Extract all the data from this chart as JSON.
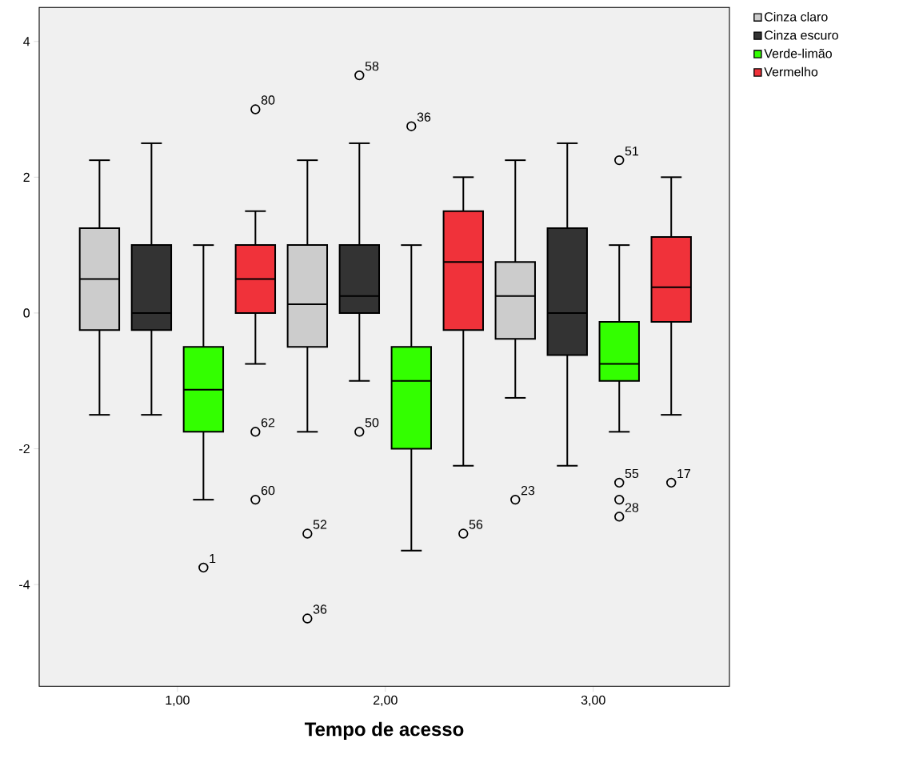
{
  "chart_data": {
    "type": "box",
    "xlabel": "Tempo de acesso",
    "categories": [
      "1,00",
      "2,00",
      "3,00"
    ],
    "ylim": [
      -5.5,
      4.5
    ],
    "yticks": [
      -4,
      -2,
      0,
      2,
      4
    ],
    "legend": "top right",
    "series": [
      {
        "name": "Cinza claro",
        "color": "#cccccc",
        "boxes": [
          {
            "low": -1.5,
            "q1": -0.25,
            "median": 0.5,
            "q3": 1.25,
            "high": 2.25
          },
          {
            "low": -1.75,
            "q1": -0.5,
            "median": 0.13,
            "q3": 1.0,
            "high": 2.25,
            "outliers": [
              -3.25,
              -4.5
            ]
          },
          {
            "low": -1.25,
            "q1": -0.38,
            "median": 0.25,
            "q3": 0.75,
            "high": 2.25,
            "outliers": [
              -2.75
            ]
          }
        ]
      },
      {
        "name": "Cinza escuro",
        "color": "#333333",
        "boxes": [
          {
            "low": -1.5,
            "q1": -0.25,
            "median": 0.0,
            "q3": 1.0,
            "high": 2.5
          },
          {
            "low": -1.0,
            "q1": 0.0,
            "median": 0.25,
            "q3": 1.0,
            "high": 2.5,
            "outliers": [
              3.5,
              -1.75
            ]
          },
          {
            "low": -2.25,
            "q1": -0.62,
            "median": 0.0,
            "q3": 1.25,
            "high": 2.5
          }
        ]
      },
      {
        "name": "Verde-limão",
        "color": "#33ff00",
        "boxes": [
          {
            "low": -2.75,
            "q1": -1.75,
            "median": -1.13,
            "q3": -0.5,
            "high": 1.0,
            "outliers": [
              -3.75
            ]
          },
          {
            "low": -3.5,
            "q1": -2.0,
            "median": -1.0,
            "q3": -0.5,
            "high": 1.0,
            "outliers": [
              2.75
            ]
          },
          {
            "low": -1.75,
            "q1": -1.0,
            "median": -0.75,
            "q3": -0.13,
            "high": 1.0,
            "outliers": [
              2.25,
              -2.5,
              -2.75,
              -3.0
            ]
          }
        ]
      },
      {
        "name": "Vermelho",
        "color": "#f0323a",
        "boxes": [
          {
            "low": -0.75,
            "q1": 0.0,
            "median": 0.5,
            "q3": 1.0,
            "high": 1.5,
            "outliers": [
              3.0,
              -1.75,
              -2.75
            ]
          },
          {
            "low": -2.25,
            "q1": -0.25,
            "median": 0.75,
            "q3": 1.5,
            "high": 2.0,
            "outliers": [
              -3.25
            ]
          },
          {
            "low": -1.5,
            "q1": -0.13,
            "median": 0.38,
            "q3": 1.12,
            "high": 2.0,
            "outliers": [
              -2.5
            ]
          }
        ]
      }
    ],
    "annotations": [
      "1",
      "80",
      "62",
      "60",
      "52",
      "36",
      "58",
      "50",
      "36",
      "56",
      "23",
      "51",
      "55",
      null,
      "28",
      "17"
    ]
  }
}
